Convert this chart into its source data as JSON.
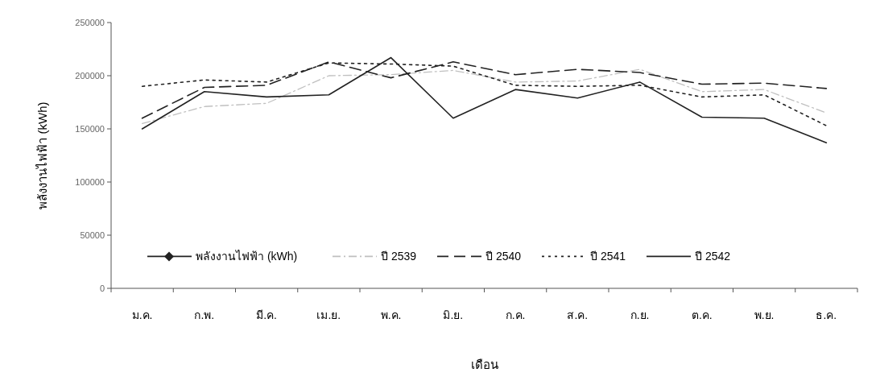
{
  "chart_data": {
    "type": "line",
    "xlabel": "เดือน",
    "ylabel": "พลังงานไฟฟ้า (kWh)",
    "categories": [
      "ม.ค.",
      "ก.พ.",
      "มี.ค.",
      "เม.ย.",
      "พ.ค.",
      "มิ.ย.",
      "ก.ค.",
      "ส.ค.",
      "ก.ย.",
      "ต.ค.",
      "พ.ย.",
      "ธ.ค."
    ],
    "ylim": [
      0,
      250000
    ],
    "yticks": [
      0,
      50000,
      100000,
      150000,
      200000,
      250000
    ],
    "grid": false,
    "legend": "bottom",
    "series": [
      {
        "name": "พลังงานไฟฟ้า (kWh)",
        "color": "#222222",
        "marker": "diamond",
        "line_style": "solid",
        "values": [
          null,
          null,
          null,
          null,
          null,
          null,
          null,
          null,
          null,
          null,
          null,
          null
        ]
      },
      {
        "name": "ปี 2539",
        "color": "#c0c0c0",
        "marker": "none",
        "line_style": "dashdot",
        "values": [
          155000,
          171000,
          174000,
          200000,
          201000,
          205000,
          194000,
          195000,
          206000,
          185000,
          187000,
          165000
        ]
      },
      {
        "name": "ปี 2540",
        "color": "#222222",
        "marker": "none",
        "line_style": "dashed",
        "values": [
          160000,
          189000,
          191000,
          213000,
          198000,
          213000,
          201000,
          206000,
          203000,
          192000,
          193000,
          188000
        ]
      },
      {
        "name": "ปี 2541",
        "color": "#222222",
        "marker": "none",
        "line_style": "dotted",
        "values": [
          190000,
          196000,
          194000,
          212000,
          211000,
          209000,
          191000,
          190000,
          191000,
          180000,
          182000,
          153000
        ]
      },
      {
        "name": "ปี 2542",
        "color": "#222222",
        "marker": "none",
        "line_style": "solid",
        "values": [
          150000,
          185000,
          180000,
          182000,
          217000,
          160000,
          187000,
          179000,
          194000,
          161000,
          160000,
          137000
        ]
      }
    ]
  }
}
